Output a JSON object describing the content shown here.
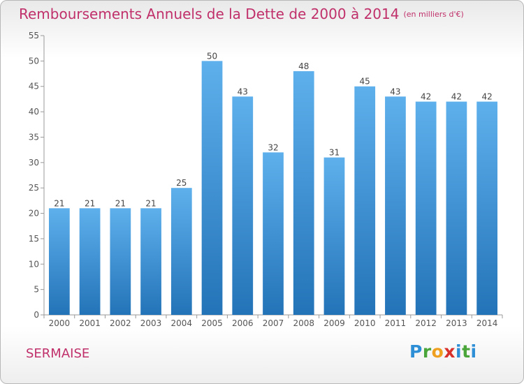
{
  "header": {
    "title": "Remboursements Annuels de la Dette de 2000 à 2014",
    "subtitle": "(en milliers d'€)"
  },
  "footer": {
    "place": "SERMAISE",
    "logo": "Proxiti"
  },
  "chart_data": {
    "type": "bar",
    "title": "Remboursements Annuels de la Dette de 2000 à 2014",
    "subtitle": "(en milliers d'€)",
    "xlabel": "",
    "ylabel": "",
    "categories": [
      "2000",
      "2001",
      "2002",
      "2003",
      "2004",
      "2005",
      "2006",
      "2007",
      "2008",
      "2009",
      "2010",
      "2011",
      "2012",
      "2013",
      "2014"
    ],
    "values": [
      21,
      21,
      21,
      21,
      25,
      50,
      43,
      32,
      48,
      31,
      45,
      43,
      42,
      42,
      42
    ],
    "ylim": [
      0,
      55
    ],
    "yticks": [
      0,
      5,
      10,
      15,
      20,
      25,
      30,
      35,
      40,
      45,
      50,
      55
    ],
    "grid": false,
    "bar_color": "#3b8fd6"
  }
}
